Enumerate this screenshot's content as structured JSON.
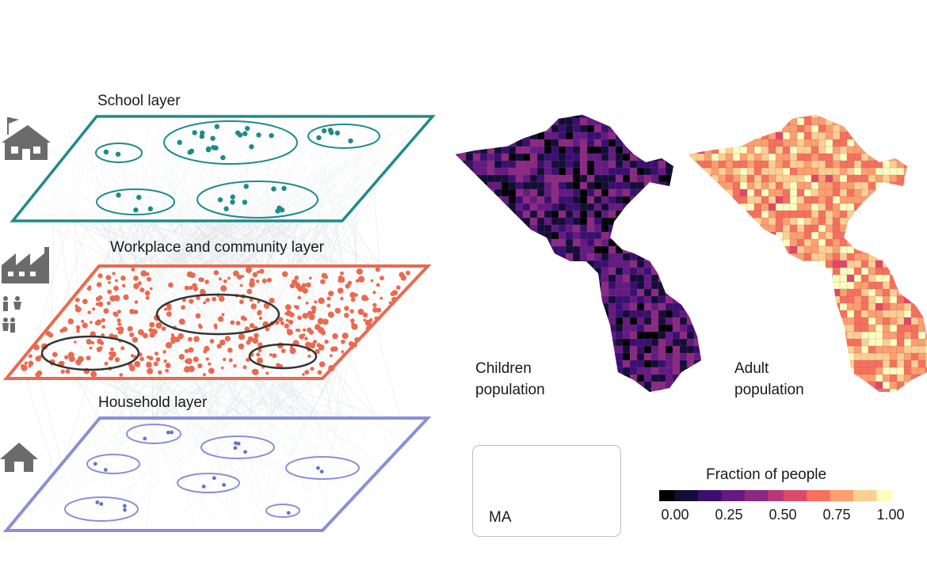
{
  "layers": {
    "school": {
      "title": "School layer",
      "color": "#1f8a8a",
      "icon": "school-icon"
    },
    "workplace": {
      "title": "Workplace and community layer",
      "color": "#ea6a50",
      "icon": "factory-icon",
      "secondary_icon": "people-icon"
    },
    "household": {
      "title": "Household layer",
      "color": "#8a8fd8",
      "icon": "house-icon"
    }
  },
  "maps": {
    "children": {
      "caption_line1": "Children",
      "caption_line2": "population",
      "palette": "magma-dark"
    },
    "adult": {
      "caption_line1": "Adult",
      "caption_line2": "population",
      "palette": "magma-light"
    }
  },
  "inset": {
    "label": "MA"
  },
  "colorbar": {
    "title": "Fraction of people",
    "ticks": [
      "0.00",
      "0.25",
      "0.50",
      "0.75",
      "1.00"
    ],
    "colors": [
      "#000004",
      "#140e36",
      "#3b0f70",
      "#641a80",
      "#8c2981",
      "#b73779",
      "#de4968",
      "#f7705c",
      "#fe9f6d",
      "#fecf92",
      "#fcfdbf"
    ]
  }
}
